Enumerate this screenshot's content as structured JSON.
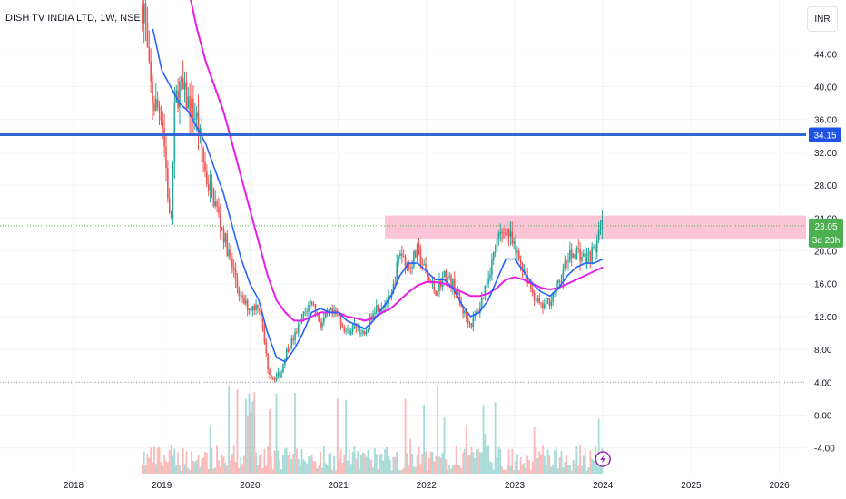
{
  "header": {
    "title": "DISH TV INDIA LTD, 1W, NSE",
    "currency": "INR"
  },
  "colors": {
    "up": "#26a69a",
    "down": "#ef5350",
    "ma_fast": "#2962ff",
    "ma_slow": "#e91ee6",
    "hline": "#3567d4",
    "zone": "#f8bbd0",
    "price_label_bg": "#4caf50",
    "hline_label_bg": "#1e53e5"
  },
  "chart_data": {
    "type": "candlestick",
    "title": "DISH TV INDIA LTD, 1W, NSE",
    "y_axis": {
      "unit": "INR",
      "ticks": [
        "44.00",
        "40.00",
        "36.00",
        "32.00",
        "28.00",
        "24.00",
        "20.00",
        "16.00",
        "12.00",
        "8.00",
        "4.00",
        "0.00",
        "-4.00"
      ]
    },
    "x_axis": {
      "ticks": [
        "2018",
        "2019",
        "2020",
        "2021",
        "2022",
        "2023",
        "2024",
        "2025",
        "2026"
      ]
    },
    "horizontal_line": {
      "value": 34.15,
      "label": "34.15"
    },
    "resistance_zone": {
      "low": 21.5,
      "high": 24.3
    },
    "last_price": {
      "value": 23.05,
      "label": "23.05",
      "countdown": "3d 23h"
    },
    "support_line": {
      "value": 4.0
    },
    "price_path": [
      [
        2018.8,
        50
      ],
      [
        2018.85,
        42
      ],
      [
        2018.9,
        38
      ],
      [
        2019.0,
        37
      ],
      [
        2019.05,
        30
      ],
      [
        2019.1,
        22
      ],
      [
        2019.15,
        38
      ],
      [
        2019.2,
        40
      ],
      [
        2019.3,
        38
      ],
      [
        2019.4,
        36
      ],
      [
        2019.5,
        29
      ],
      [
        2019.6,
        26
      ],
      [
        2019.7,
        22
      ],
      [
        2019.8,
        18
      ],
      [
        2019.9,
        14
      ],
      [
        2020.0,
        13
      ],
      [
        2020.1,
        13.5
      ],
      [
        2020.15,
        10
      ],
      [
        2020.2,
        6
      ],
      [
        2020.25,
        4.5
      ],
      [
        2020.35,
        5
      ],
      [
        2020.4,
        7.5
      ],
      [
        2020.5,
        9.5
      ],
      [
        2020.6,
        12
      ],
      [
        2020.7,
        14
      ],
      [
        2020.8,
        11
      ],
      [
        2020.9,
        12.5
      ],
      [
        2021.0,
        12
      ],
      [
        2021.1,
        10
      ],
      [
        2021.2,
        11
      ],
      [
        2021.3,
        9.5
      ],
      [
        2021.4,
        13
      ],
      [
        2021.5,
        13.5
      ],
      [
        2021.6,
        14
      ],
      [
        2021.7,
        20
      ],
      [
        2021.8,
        18
      ],
      [
        2021.9,
        20
      ],
      [
        2022.0,
        17
      ],
      [
        2022.1,
        15
      ],
      [
        2022.2,
        17
      ],
      [
        2022.3,
        16
      ],
      [
        2022.4,
        13
      ],
      [
        2022.5,
        11
      ],
      [
        2022.6,
        13
      ],
      [
        2022.7,
        17
      ],
      [
        2022.8,
        21
      ],
      [
        2022.9,
        23
      ],
      [
        2023.0,
        20
      ],
      [
        2023.1,
        18
      ],
      [
        2023.2,
        15
      ],
      [
        2023.3,
        13
      ],
      [
        2023.4,
        14
      ],
      [
        2023.5,
        16
      ],
      [
        2023.6,
        19
      ],
      [
        2023.7,
        20
      ],
      [
        2023.8,
        19
      ],
      [
        2023.9,
        20
      ],
      [
        2024.0,
        23.05
      ]
    ],
    "ma_fast_path": [
      [
        2018.9,
        47
      ],
      [
        2019.0,
        42
      ],
      [
        2019.1,
        40
      ],
      [
        2019.2,
        38
      ],
      [
        2019.3,
        37
      ],
      [
        2019.4,
        35
      ],
      [
        2019.5,
        33
      ],
      [
        2019.6,
        30
      ],
      [
        2019.7,
        27
      ],
      [
        2019.8,
        23
      ],
      [
        2019.9,
        19
      ],
      [
        2020.0,
        16
      ],
      [
        2020.1,
        14
      ],
      [
        2020.2,
        10
      ],
      [
        2020.3,
        7
      ],
      [
        2020.4,
        6.5
      ],
      [
        2020.5,
        8
      ],
      [
        2020.6,
        10
      ],
      [
        2020.7,
        12.5
      ],
      [
        2020.8,
        13
      ],
      [
        2020.9,
        12.5
      ],
      [
        2021.0,
        12.5
      ],
      [
        2021.1,
        11.5
      ],
      [
        2021.2,
        11
      ],
      [
        2021.3,
        10.5
      ],
      [
        2021.4,
        11.5
      ],
      [
        2021.5,
        13
      ],
      [
        2021.6,
        14.5
      ],
      [
        2021.7,
        17
      ],
      [
        2021.8,
        18.5
      ],
      [
        2021.9,
        18.5
      ],
      [
        2022.0,
        17.5
      ],
      [
        2022.1,
        16.5
      ],
      [
        2022.2,
        16.5
      ],
      [
        2022.3,
        15.5
      ],
      [
        2022.4,
        13.5
      ],
      [
        2022.5,
        12
      ],
      [
        2022.6,
        12.5
      ],
      [
        2022.7,
        14
      ],
      [
        2022.8,
        16.5
      ],
      [
        2022.9,
        19
      ],
      [
        2023.0,
        19
      ],
      [
        2023.1,
        17.5
      ],
      [
        2023.2,
        16
      ],
      [
        2023.3,
        15
      ],
      [
        2023.4,
        14.5
      ],
      [
        2023.5,
        15.5
      ],
      [
        2023.6,
        17
      ],
      [
        2023.7,
        18
      ],
      [
        2023.8,
        18.5
      ],
      [
        2023.9,
        18.5
      ],
      [
        2024.0,
        19
      ]
    ],
    "ma_slow_path": [
      [
        2019.3,
        52
      ],
      [
        2019.4,
        47
      ],
      [
        2019.5,
        43
      ],
      [
        2019.6,
        40
      ],
      [
        2019.7,
        37
      ],
      [
        2019.8,
        33
      ],
      [
        2019.9,
        29
      ],
      [
        2020.0,
        25
      ],
      [
        2020.1,
        21
      ],
      [
        2020.2,
        17
      ],
      [
        2020.3,
        14
      ],
      [
        2020.4,
        12.5
      ],
      [
        2020.5,
        11.5
      ],
      [
        2020.6,
        11.5
      ],
      [
        2020.7,
        12
      ],
      [
        2020.8,
        12.5
      ],
      [
        2020.9,
        12.5
      ],
      [
        2021.0,
        12.5
      ],
      [
        2021.1,
        12
      ],
      [
        2021.2,
        11.8
      ],
      [
        2021.3,
        11.5
      ],
      [
        2021.4,
        11.8
      ],
      [
        2021.5,
        12.5
      ],
      [
        2021.6,
        13
      ],
      [
        2021.7,
        14
      ],
      [
        2021.8,
        15
      ],
      [
        2021.9,
        15.8
      ],
      [
        2022.0,
        16.2
      ],
      [
        2022.1,
        16.2
      ],
      [
        2022.2,
        16
      ],
      [
        2022.3,
        15.5
      ],
      [
        2022.4,
        15
      ],
      [
        2022.5,
        14.5
      ],
      [
        2022.6,
        14.5
      ],
      [
        2022.7,
        14.8
      ],
      [
        2022.8,
        15.5
      ],
      [
        2022.9,
        16.5
      ],
      [
        2023.0,
        16.8
      ],
      [
        2023.1,
        16.5
      ],
      [
        2023.2,
        16
      ],
      [
        2023.3,
        15.5
      ],
      [
        2023.4,
        15.3
      ],
      [
        2023.5,
        15.5
      ],
      [
        2023.6,
        16
      ],
      [
        2023.7,
        16.5
      ],
      [
        2023.8,
        17
      ],
      [
        2023.9,
        17.5
      ],
      [
        2024.0,
        18
      ]
    ]
  }
}
